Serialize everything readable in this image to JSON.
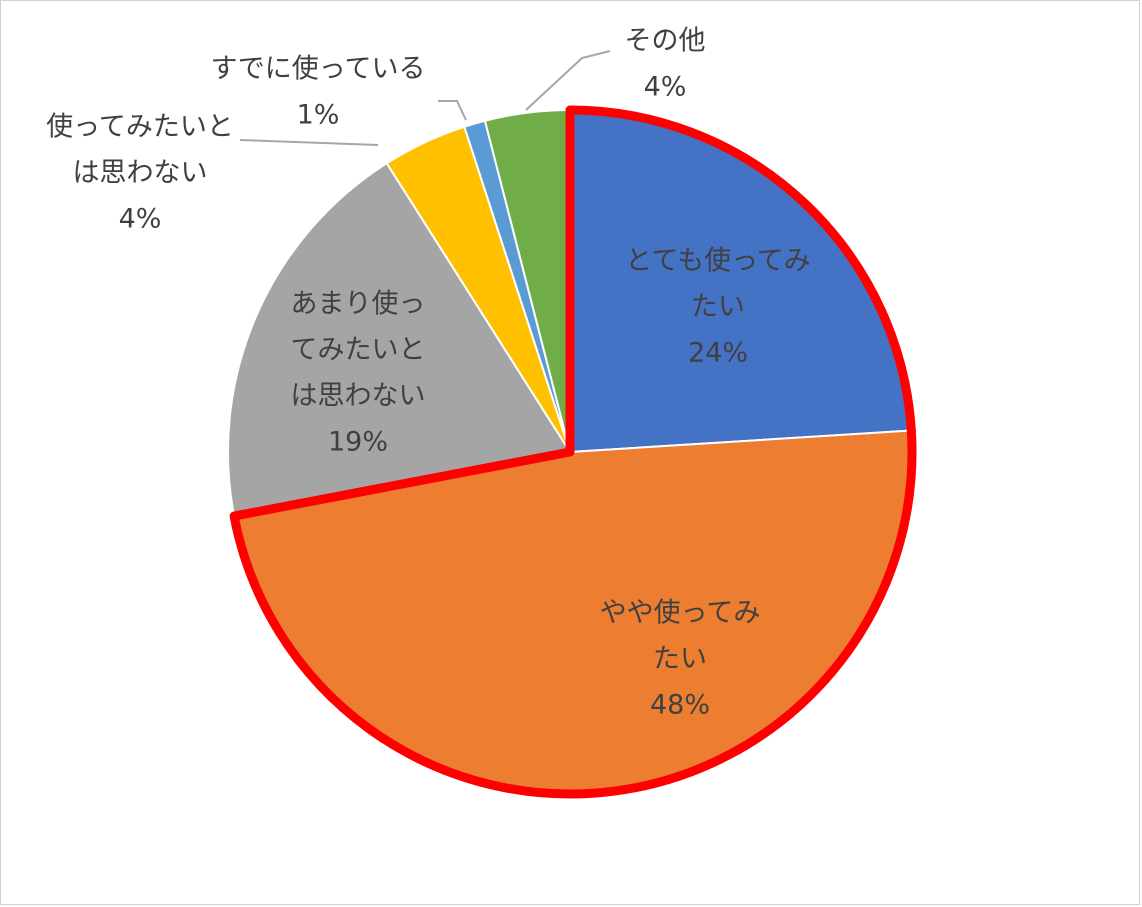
{
  "chart_data": {
    "type": "pie",
    "title": "",
    "start_angle_deg": 0,
    "direction": "clockwise",
    "highlight_outline_color": "#ff0000",
    "highlight_outline_slices": [
      0,
      1
    ],
    "slices": [
      {
        "label_lines": [
          "とても使ってみ",
          "たい"
        ],
        "percent_text": "24%",
        "value": 24,
        "color": "#4472c4"
      },
      {
        "label_lines": [
          "やや使ってみ",
          "たい"
        ],
        "percent_text": "48%",
        "value": 48,
        "color": "#ed7d31"
      },
      {
        "label_lines": [
          "あまり使っ",
          "てみたいと",
          "は思わない"
        ],
        "percent_text": "19%",
        "value": 19,
        "color": "#a5a5a5"
      },
      {
        "label_lines": [
          "使ってみたいと",
          "は思わない"
        ],
        "percent_text": "4%",
        "value": 4,
        "color": "#ffc000"
      },
      {
        "label_lines": [
          "すでに使っている"
        ],
        "percent_text": "1%",
        "value": 1,
        "color": "#5b9bd5"
      },
      {
        "label_lines": [
          "その他"
        ],
        "percent_text": "4%",
        "value": 4,
        "color": "#70ad47"
      }
    ]
  }
}
